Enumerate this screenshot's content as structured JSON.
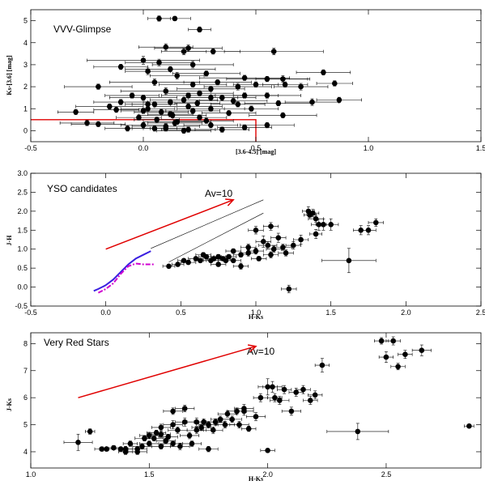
{
  "colors": {
    "reddening": "#e00000",
    "model_solid": "#3a1fe0",
    "model_dash": "#d000d0",
    "points": "#000000"
  },
  "chart_data": [
    {
      "type": "scatter",
      "title": "VVV-Glimpse",
      "xlabel": "[3.6-4.5] [mag]",
      "ylabel": "Ks-[3.6] [mag]",
      "xlim": [
        -0.5,
        1.5
      ],
      "ylim": [
        -0.5,
        5.5
      ],
      "xticks": [
        -0.5,
        0.0,
        0.5,
        1.0,
        1.5
      ],
      "xtick_labels": [
        "-0.5",
        "0.0",
        "0.5",
        "1.0",
        "1.5"
      ],
      "yticks": [
        0,
        1,
        2,
        3,
        4,
        5
      ],
      "ytick_labels": [
        "0",
        "1",
        "2",
        "3",
        "4",
        "5"
      ],
      "grid": false,
      "boundary": {
        "color": "red",
        "x": [
          -0.5,
          0.5,
          0.5
        ],
        "y": [
          0.5,
          0.5,
          -0.5
        ]
      },
      "series": [
        {
          "x": [
            0.07,
            0.14,
            0.25,
            0.1,
            0.2,
            0.18,
            0.31,
            0.58,
            0.0,
            0.07,
            0.22,
            -0.1,
            0.02,
            0.12,
            0.28,
            0.15,
            0.45,
            0.55,
            0.62,
            0.8,
            0.63,
            0.7,
            0.85,
            0.05,
            0.22,
            0.33,
            0.42,
            0.5,
            0.3,
            0.1,
            -0.2,
            -0.05,
            0.0,
            0.2,
            0.25,
            0.35,
            0.45,
            0.55,
            -0.1,
            0.05,
            0.18,
            0.12,
            0.3,
            0.4,
            0.6,
            0.75,
            0.87,
            0.02,
            -0.15,
            0.2,
            0.3,
            -0.3,
            -0.12,
            0.0,
            0.08,
            0.22,
            0.38,
            0.48,
            0.62,
            0.13,
            0.25,
            -0.02,
            0.06,
            0.15,
            -0.25,
            0.1,
            0.3,
            -0.07,
            0.45,
            0.55,
            0.18,
            -0.2,
            0.05,
            0.35,
            0.12,
            0.02,
            0.24,
            0.14,
            0.28,
            0.0,
            0.1,
            0.2,
            0.42
          ],
          "y": [
            5.1,
            5.1,
            4.6,
            3.8,
            3.75,
            3.6,
            3.6,
            3.6,
            3.2,
            3.1,
            3.0,
            2.9,
            2.7,
            2.8,
            2.6,
            2.5,
            2.4,
            2.35,
            2.35,
            2.65,
            2.1,
            2.0,
            2.15,
            2.2,
            2.1,
            2.2,
            2.0,
            2.1,
            1.9,
            1.8,
            2.0,
            1.6,
            1.5,
            1.6,
            1.7,
            1.5,
            1.6,
            1.6,
            1.3,
            1.2,
            1.4,
            1.3,
            1.5,
            1.35,
            1.25,
            1.3,
            1.4,
            1.0,
            1.1,
            1.1,
            1.0,
            0.85,
            0.95,
            0.9,
            0.85,
            0.9,
            0.8,
            1.0,
            0.7,
            0.7,
            0.6,
            0.6,
            0.5,
            0.4,
            0.35,
            0.2,
            0.25,
            0.1,
            0.15,
            0.25,
            0.0,
            0.3,
            0.1,
            0.05,
            0.75,
            1.2,
            1.25,
            0.35,
            0.45,
            0.25,
            0.1,
            0.05,
            1.2
          ],
          "xerr": [
            0.05,
            0.07,
            0.05,
            0.12,
            0.15,
            0.1,
            0.12,
            0.22,
            0.25,
            0.15,
            0.18,
            0.12,
            0.1,
            0.2,
            0.15,
            0.12,
            0.2,
            0.18,
            0.12,
            0.12,
            0.1,
            0.12,
            0.08,
            0.2,
            0.15,
            0.15,
            0.15,
            0.1,
            0.15,
            0.2,
            0.15,
            0.12,
            0.15,
            0.12,
            0.15,
            0.15,
            0.15,
            0.15,
            0.12,
            0.1,
            0.15,
            0.12,
            0.12,
            0.15,
            0.15,
            0.12,
            0.1,
            0.12,
            0.15,
            0.15,
            0.15,
            0.08,
            0.1,
            0.1,
            0.12,
            0.12,
            0.12,
            0.12,
            0.15,
            0.15,
            0.12,
            0.1,
            0.1,
            0.15,
            0.12,
            0.15,
            0.12,
            0.1,
            0.12,
            0.12,
            0.12,
            0.12,
            0.1,
            0.12,
            0.1,
            0.1,
            0.1,
            0.12,
            0.12,
            0.1,
            0.1,
            0.12,
            0.12
          ],
          "yerr": [
            0.12,
            0.1,
            0.12,
            0.15,
            0.15,
            0.15,
            0.12,
            0.15,
            0.18,
            0.15,
            0.15,
            0.12,
            0.15,
            0.12,
            0.12,
            0.15,
            0.12,
            0.12,
            0.15,
            0.12,
            0.12,
            0.15,
            0.12,
            0.15,
            0.12,
            0.12,
            0.15,
            0.12,
            0.12,
            0.15,
            0.12,
            0.12,
            0.12,
            0.12,
            0.12,
            0.12,
            0.12,
            0.12,
            0.12,
            0.12,
            0.12,
            0.12,
            0.12,
            0.12,
            0.12,
            0.15,
            0.12,
            0.12,
            0.12,
            0.12,
            0.12,
            0.12,
            0.12,
            0.12,
            0.12,
            0.12,
            0.12,
            0.12,
            0.12,
            0.12,
            0.12,
            0.12,
            0.12,
            0.12,
            0.12,
            0.12,
            0.12,
            0.12,
            0.12,
            0.12,
            0.12,
            0.12,
            0.12,
            0.12,
            0.12,
            0.12,
            0.12,
            0.12,
            0.12,
            0.12,
            0.12,
            0.12,
            0.12
          ]
        }
      ]
    },
    {
      "type": "scatter",
      "title": "YSO candidates",
      "xlabel": "H-Ks",
      "ylabel": "J-H",
      "xlim": [
        -0.5,
        2.5
      ],
      "ylim": [
        -0.5,
        3.0
      ],
      "xticks": [
        -0.5,
        0.0,
        0.5,
        1.0,
        1.5,
        2.0,
        2.5
      ],
      "xtick_labels": [
        "-0.5",
        "0.0",
        "0.5",
        "1.0",
        "1.5",
        "2.0",
        "2.5"
      ],
      "yticks": [
        -0.5,
        0.0,
        0.5,
        1.0,
        1.5,
        2.0,
        2.5,
        3.0
      ],
      "ytick_labels": [
        "-0.5",
        "0.0",
        "0.5",
        "1.0",
        "1.5",
        "2.0",
        "2.5",
        "3.0"
      ],
      "grid": false,
      "reddening_vector": {
        "label": "Av=10",
        "x": [
          0.0,
          0.85
        ],
        "y": [
          1.0,
          2.3
        ]
      },
      "reddening_band": [
        {
          "x": [
            0.3,
            1.05
          ],
          "y": [
            1.02,
            2.3
          ]
        },
        {
          "x": [
            0.42,
            1.05
          ],
          "y": [
            0.66,
            1.95
          ]
        }
      ],
      "model_solid": {
        "x": [
          -0.08,
          -0.05,
          0.0,
          0.05,
          0.1,
          0.15,
          0.2,
          0.25,
          0.3
        ],
        "y": [
          -0.1,
          -0.05,
          0.05,
          0.2,
          0.4,
          0.6,
          0.75,
          0.85,
          0.95
        ]
      },
      "model_dashed": {
        "x": [
          -0.05,
          0.0,
          0.05,
          0.1,
          0.15,
          0.2,
          0.25,
          0.32
        ],
        "y": [
          -0.15,
          -0.05,
          0.1,
          0.35,
          0.55,
          0.62,
          0.6,
          0.6
        ]
      },
      "series": [
        {
          "x": [
            0.42,
            0.48,
            0.52,
            0.55,
            0.6,
            0.63,
            0.67,
            0.7,
            0.72,
            0.75,
            0.78,
            0.8,
            0.82,
            0.85,
            0.9,
            0.95,
            1.0,
            1.02,
            1.05,
            1.08,
            1.1,
            1.12,
            1.15,
            1.18,
            1.2,
            1.25,
            1.3,
            1.35,
            1.36,
            1.38,
            1.4,
            1.42,
            1.45,
            1.5,
            1.7,
            1.75,
            1.8,
            1.62,
            1.22,
            0.9,
            0.95,
            0.65,
            0.75,
            1.0,
            1.1,
            0.85,
            1.4
          ],
          "y": [
            0.55,
            0.6,
            0.7,
            0.65,
            0.75,
            0.7,
            0.8,
            0.7,
            0.75,
            0.8,
            0.75,
            0.7,
            0.8,
            0.7,
            0.85,
            0.9,
            0.95,
            0.75,
            1.2,
            1.1,
            0.85,
            1.0,
            1.3,
            1.05,
            0.9,
            1.1,
            1.25,
            2.0,
            1.9,
            1.95,
            1.4,
            1.65,
            1.65,
            1.65,
            1.5,
            1.5,
            1.7,
            0.7,
            -0.05,
            0.55,
            1.05,
            0.85,
            0.6,
            1.5,
            1.6,
            0.95,
            1.8
          ],
          "xerr": [
            0.04,
            0.04,
            0.04,
            0.05,
            0.05,
            0.04,
            0.05,
            0.05,
            0.04,
            0.05,
            0.05,
            0.05,
            0.05,
            0.05,
            0.05,
            0.05,
            0.05,
            0.05,
            0.05,
            0.06,
            0.05,
            0.05,
            0.05,
            0.06,
            0.05,
            0.05,
            0.05,
            0.04,
            0.04,
            0.04,
            0.04,
            0.05,
            0.05,
            0.05,
            0.05,
            0.05,
            0.05,
            0.18,
            0.05,
            0.05,
            0.05,
            0.05,
            0.05,
            0.05,
            0.05,
            0.05,
            0.05
          ],
          "yerr": [
            0.05,
            0.05,
            0.05,
            0.05,
            0.05,
            0.05,
            0.06,
            0.05,
            0.05,
            0.06,
            0.05,
            0.05,
            0.06,
            0.05,
            0.06,
            0.08,
            0.08,
            0.06,
            0.15,
            0.1,
            0.08,
            0.08,
            0.12,
            0.08,
            0.08,
            0.1,
            0.12,
            0.12,
            0.1,
            0.1,
            0.12,
            0.15,
            0.15,
            0.15,
            0.12,
            0.12,
            0.1,
            0.32,
            0.1,
            0.08,
            0.08,
            0.06,
            0.05,
            0.1,
            0.1,
            0.06,
            0.1
          ]
        }
      ]
    },
    {
      "type": "scatter",
      "title": "Very Red Stars",
      "xlabel": "H-Ks",
      "ylabel": "J-Ks",
      "xlim": [
        1.0,
        2.9
      ],
      "ylim": [
        3.4,
        8.4
      ],
      "xticks": [
        1.0,
        1.5,
        2.0,
        2.5
      ],
      "xtick_labels": [
        "1.0",
        "1.5",
        "2.0",
        "2.5"
      ],
      "yticks": [
        4,
        5,
        6,
        7,
        8
      ],
      "ytick_labels": [
        "4",
        "5",
        "6",
        "7",
        "8"
      ],
      "grid": false,
      "reddening_vector": {
        "label": "Av=10",
        "x": [
          1.2,
          1.95
        ],
        "y": [
          6.0,
          7.9
        ]
      },
      "series": [
        {
          "x": [
            1.2,
            1.25,
            1.3,
            1.32,
            1.35,
            1.38,
            1.4,
            1.42,
            1.45,
            1.47,
            1.48,
            1.5,
            1.5,
            1.52,
            1.53,
            1.55,
            1.55,
            1.57,
            1.58,
            1.6,
            1.6,
            1.62,
            1.63,
            1.65,
            1.67,
            1.68,
            1.7,
            1.7,
            1.72,
            1.73,
            1.75,
            1.77,
            1.78,
            1.8,
            1.82,
            1.83,
            1.85,
            1.87,
            1.88,
            1.9,
            1.9,
            1.92,
            1.95,
            1.97,
            2.0,
            2.02,
            2.03,
            2.05,
            2.07,
            2.1,
            2.12,
            2.15,
            2.18,
            2.2,
            2.23,
            2.48,
            2.5,
            2.53,
            2.55,
            2.58,
            2.65,
            2.85,
            2.38,
            2.0,
            1.6,
            1.75,
            1.45,
            1.55,
            1.65,
            1.4,
            1.48
          ],
          "y": [
            4.35,
            4.75,
            4.1,
            4.1,
            4.15,
            4.1,
            4.1,
            4.3,
            4.1,
            4.2,
            4.5,
            4.6,
            4.3,
            4.5,
            4.7,
            4.2,
            4.65,
            4.4,
            4.55,
            4.3,
            5.0,
            4.8,
            4.2,
            5.1,
            4.6,
            4.3,
            4.8,
            5.1,
            4.9,
            5.1,
            5.0,
            4.8,
            5.1,
            5.2,
            5.0,
            5.4,
            5.2,
            5.5,
            5.0,
            5.6,
            5.5,
            4.85,
            5.3,
            6.0,
            6.4,
            6.4,
            6.0,
            5.9,
            6.3,
            5.5,
            6.2,
            6.3,
            5.9,
            6.1,
            7.2,
            8.1,
            7.5,
            8.1,
            7.15,
            7.6,
            7.75,
            4.95,
            4.75,
            4.05,
            5.5,
            4.1,
            4.0,
            4.9,
            5.6,
            4.0,
            4.5
          ],
          "xerr": [
            0.06,
            0.02,
            0.03,
            0.03,
            0.03,
            0.03,
            0.03,
            0.03,
            0.04,
            0.04,
            0.04,
            0.04,
            0.04,
            0.04,
            0.04,
            0.04,
            0.04,
            0.04,
            0.04,
            0.04,
            0.04,
            0.04,
            0.04,
            0.04,
            0.04,
            0.04,
            0.04,
            0.04,
            0.04,
            0.04,
            0.04,
            0.04,
            0.04,
            0.04,
            0.04,
            0.04,
            0.04,
            0.04,
            0.04,
            0.04,
            0.04,
            0.03,
            0.04,
            0.03,
            0.04,
            0.04,
            0.03,
            0.04,
            0.03,
            0.04,
            0.03,
            0.03,
            0.03,
            0.03,
            0.03,
            0.03,
            0.03,
            0.03,
            0.03,
            0.03,
            0.04,
            0.02,
            0.13,
            0.03,
            0.04,
            0.04,
            0.04,
            0.04,
            0.04,
            0.03,
            0.04
          ],
          "yerr": [
            0.3,
            0.1,
            0.08,
            0.08,
            0.08,
            0.08,
            0.1,
            0.1,
            0.1,
            0.1,
            0.1,
            0.12,
            0.1,
            0.1,
            0.1,
            0.1,
            0.12,
            0.1,
            0.1,
            0.1,
            0.15,
            0.12,
            0.12,
            0.15,
            0.12,
            0.1,
            0.12,
            0.15,
            0.12,
            0.12,
            0.12,
            0.12,
            0.12,
            0.12,
            0.12,
            0.12,
            0.12,
            0.12,
            0.12,
            0.15,
            0.15,
            0.1,
            0.15,
            0.15,
            0.3,
            0.2,
            0.15,
            0.15,
            0.15,
            0.15,
            0.15,
            0.15,
            0.15,
            0.15,
            0.25,
            0.12,
            0.2,
            0.15,
            0.12,
            0.15,
            0.2,
            0.05,
            0.3,
            0.05,
            0.12,
            0.1,
            0.1,
            0.12,
            0.12,
            0.1,
            0.1
          ]
        }
      ]
    }
  ]
}
